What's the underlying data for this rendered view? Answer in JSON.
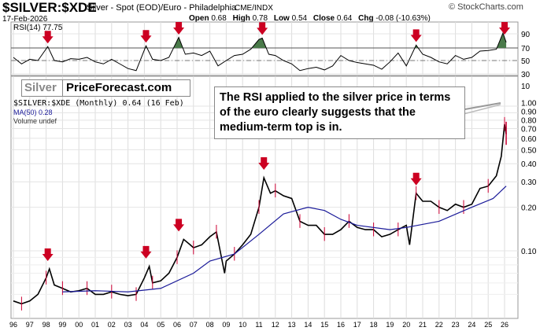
{
  "header": {
    "symbol": "$SILVER:$XDE",
    "description": "Silver - Spot (EOD)/Euro - Philadelphia",
    "exchange": "CME/INDX",
    "brand": "© StockCharts.com",
    "date": "17-Feb-2026",
    "ohlc": [
      {
        "k": "Open",
        "v": "0.68"
      },
      {
        "k": "High",
        "v": "0.78"
      },
      {
        "k": "Low",
        "v": "0.54"
      },
      {
        "k": "Close",
        "v": "0.64"
      },
      {
        "k": "Chg",
        "v": "-0.08 (-10.63%)"
      }
    ]
  },
  "logo": {
    "left": "Silver",
    "right": "PriceForecast.com"
  },
  "legend": {
    "price": "$SILVER:$XDE (Monthly) 0.64 (16 Feb)",
    "ma": "MA(50) 0.28",
    "volume": "Volume undef"
  },
  "annotation": "The RSI applied to the silver price in terms of the euro clearly suggests that the medium-term top is in.",
  "colors": {
    "price": "#000000",
    "down": "#cc0033",
    "ma": "#1a1a99",
    "rsi_fill": "#4a7a4a",
    "arrow": "#cc0022"
  },
  "chart_data": [
    {
      "type": "line",
      "title": "RSI(14) 77.75",
      "ylim": [
        25,
        100
      ],
      "yticks": [
        30,
        50,
        70,
        90
      ],
      "levels": [
        70,
        50
      ],
      "x": [
        1996,
        1996.5,
        1997,
        1997.5,
        1998.1,
        1998.5,
        1999,
        1999.5,
        2000,
        2000.5,
        2001,
        2001.5,
        2002,
        2002.5,
        2003,
        2003.5,
        2004.1,
        2004.5,
        2005,
        2005.5,
        2006.1,
        2006.5,
        2007,
        2007.5,
        2008,
        2008.5,
        2009,
        2009.5,
        2010,
        2010.5,
        2011,
        2011.2,
        2011.6,
        2012,
        2012.5,
        2013,
        2013.5,
        2014,
        2014.5,
        2015,
        2015.5,
        2016,
        2016.5,
        2017,
        2017.5,
        2018,
        2018.5,
        2019,
        2019.5,
        2020,
        2020.6,
        2021,
        2021.5,
        2022,
        2022.5,
        2023,
        2023.5,
        2024,
        2024.5,
        2025,
        2025.5,
        2025.9,
        2026.1
      ],
      "values": [
        55,
        45,
        52,
        50,
        72,
        50,
        48,
        53,
        52,
        55,
        48,
        45,
        52,
        45,
        38,
        35,
        73,
        52,
        50,
        55,
        85,
        60,
        62,
        58,
        65,
        42,
        50,
        58,
        60,
        68,
        82,
        84,
        60,
        58,
        50,
        45,
        35,
        38,
        40,
        36,
        42,
        58,
        50,
        47,
        45,
        43,
        37,
        48,
        62,
        42,
        74,
        60,
        55,
        48,
        45,
        58,
        52,
        55,
        65,
        66,
        68,
        91,
        78
      ],
      "arrows_x": [
        1998.1,
        2004.1,
        2006.1,
        2011.2,
        2020.6,
        2026.0
      ]
    },
    {
      "type": "line",
      "title": "$SILVER:$XDE (Monthly)",
      "yscale": "log",
      "ylim": [
        0.035,
        1.25
      ],
      "yticks": [
        "1.00",
        "0.90",
        "0.80",
        "0.70",
        "0.60",
        "0.50",
        "0.40",
        "0.30",
        "0.20",
        "0.10"
      ],
      "extra_tick": "10",
      "xticks": [
        "96",
        "97",
        "98",
        "99",
        "00",
        "01",
        "02",
        "03",
        "04",
        "05",
        "06",
        "07",
        "08",
        "09",
        "10",
        "11",
        "12",
        "13",
        "14",
        "15",
        "16",
        "17",
        "18",
        "19",
        "20",
        "21",
        "22",
        "23",
        "24",
        "25",
        "26"
      ],
      "x": [
        1996,
        1996.5,
        1997,
        1997.5,
        1998,
        1998.2,
        1998.5,
        1999,
        1999.5,
        2000,
        2000.5,
        2001,
        2001.5,
        2002,
        2002.5,
        2003,
        2003.5,
        2004,
        2004.3,
        2004.5,
        2005,
        2005.5,
        2006,
        2006.4,
        2006.8,
        2007,
        2007.5,
        2008,
        2008.4,
        2008.9,
        2009,
        2009.5,
        2010,
        2010.5,
        2011,
        2011.3,
        2011.7,
        2012,
        2012.5,
        2013,
        2013.5,
        2014,
        2014.5,
        2015,
        2015.5,
        2016,
        2016.5,
        2017,
        2017.5,
        2018,
        2018.5,
        2019,
        2019.5,
        2020,
        2020.2,
        2020.6,
        2021,
        2021.5,
        2022,
        2022.5,
        2023,
        2023.5,
        2024,
        2024.5,
        2025,
        2025.5,
        2025.8,
        2026,
        2026.1
      ],
      "values": [
        0.045,
        0.043,
        0.045,
        0.05,
        0.065,
        0.075,
        0.058,
        0.055,
        0.052,
        0.053,
        0.055,
        0.05,
        0.05,
        0.052,
        0.05,
        0.049,
        0.05,
        0.065,
        0.078,
        0.06,
        0.062,
        0.07,
        0.09,
        0.12,
        0.11,
        0.105,
        0.11,
        0.125,
        0.135,
        0.07,
        0.085,
        0.095,
        0.11,
        0.13,
        0.2,
        0.32,
        0.25,
        0.26,
        0.24,
        0.23,
        0.16,
        0.15,
        0.15,
        0.13,
        0.13,
        0.14,
        0.16,
        0.145,
        0.14,
        0.14,
        0.125,
        0.13,
        0.14,
        0.15,
        0.11,
        0.25,
        0.22,
        0.22,
        0.2,
        0.19,
        0.21,
        0.2,
        0.21,
        0.27,
        0.28,
        0.33,
        0.45,
        0.75,
        0.64
      ],
      "ma_x": [
        1999,
        2001,
        2003,
        2005,
        2007,
        2008,
        2009.5,
        2011,
        2012.5,
        2014,
        2015,
        2016,
        2017,
        2019,
        2020,
        2022,
        2024,
        2025.3,
        2026.1
      ],
      "ma_values": [
        0.052,
        0.053,
        0.052,
        0.055,
        0.07,
        0.085,
        0.095,
        0.13,
        0.18,
        0.2,
        0.19,
        0.165,
        0.15,
        0.14,
        0.145,
        0.16,
        0.2,
        0.23,
        0.28
      ],
      "last_candle": {
        "open": 0.68,
        "high": 0.78,
        "low": 0.54,
        "close": 0.64
      },
      "arrows_x": [
        1998.1,
        2004.1,
        2006.1,
        2011.3,
        2020.6
      ]
    }
  ]
}
